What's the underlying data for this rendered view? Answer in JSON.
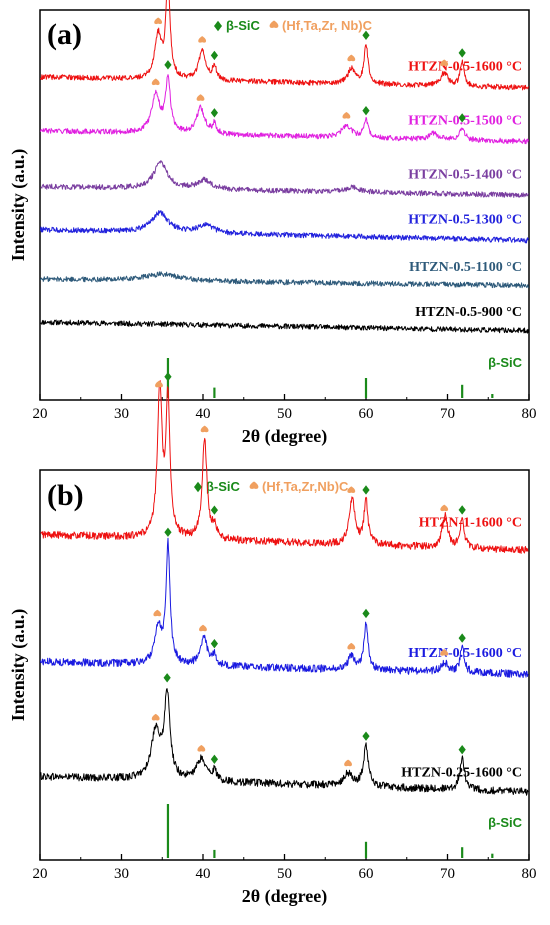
{
  "colors": {
    "sic": "#1a8a1a",
    "carbide": "#f0a060",
    "axis": "#000000"
  },
  "chart_data": [
    {
      "type": "line",
      "panel": "(a)",
      "xlabel": "2θ (degree)",
      "ylabel": "Intensity (a.u.)",
      "xlim": [
        20,
        80
      ],
      "xticks": [
        "20",
        "30",
        "40",
        "50",
        "60",
        "70",
        "80"
      ],
      "legend": {
        "sic": "β-SiC",
        "carbide": "(Hf,Ta,Zr, Nb)C"
      },
      "reference": {
        "name": "β-SiC",
        "color": "#1a8a1a",
        "peaks": [
          {
            "x": 35.7,
            "rel": 1.0
          },
          {
            "x": 41.4,
            "rel": 0.26
          },
          {
            "x": 60.0,
            "rel": 0.5
          },
          {
            "x": 71.8,
            "rel": 0.33
          },
          {
            "x": 75.5,
            "rel": 0.1
          }
        ]
      },
      "series": [
        {
          "name": "HTZN-0.5-900 °C",
          "color": "#000000",
          "baseline_start": 1.3,
          "baseline_end": 1.1,
          "peaks": []
        },
        {
          "name": "HTZN-0.5-1100 °C",
          "color": "#2e5a7a",
          "baseline_start": 2.3,
          "baseline_end": 2.15,
          "peaks": [
            {
              "x": 35,
              "h": 0.15,
              "w": 2.5
            }
          ]
        },
        {
          "name": "HTZN-0.5-1300 °C",
          "color": "#2222dd",
          "baseline_start": 3.45,
          "baseline_end": 3.2,
          "peaks": [
            {
              "x": 34.7,
              "h": 0.45,
              "w": 1.2
            },
            {
              "x": 40.3,
              "h": 0.18,
              "w": 1.2
            }
          ]
        },
        {
          "name": "HTZN-0.5-1400 °C",
          "color": "#7a3ea0",
          "baseline_start": 4.45,
          "baseline_end": 4.25,
          "peaks": [
            {
              "x": 34.8,
              "h": 0.6,
              "w": 1.0
            },
            {
              "x": 40.2,
              "h": 0.22,
              "w": 1.0
            },
            {
              "x": 58.3,
              "h": 0.12,
              "w": 1.0
            }
          ]
        },
        {
          "name": "HTZN-0.5-1500 °C",
          "color": "#e020e0",
          "baseline_start": 5.75,
          "baseline_end": 5.5,
          "peaks": [
            {
              "x": 34.2,
              "h": 0.9,
              "w": 0.6
            },
            {
              "x": 35.7,
              "h": 1.25,
              "w": 0.35
            },
            {
              "x": 39.7,
              "h": 0.6,
              "w": 0.6
            },
            {
              "x": 41.4,
              "h": 0.22,
              "w": 0.3
            },
            {
              "x": 57.6,
              "h": 0.28,
              "w": 0.7
            },
            {
              "x": 60.0,
              "h": 0.4,
              "w": 0.35
            },
            {
              "x": 68.3,
              "h": 0.15,
              "w": 0.6
            },
            {
              "x": 71.8,
              "h": 0.3,
              "w": 0.35
            }
          ]
        },
        {
          "name": "HTZN-0.5-1600 °C",
          "color": "#ee1111",
          "baseline_start": 7.0,
          "baseline_end": 6.75,
          "peaks": [
            {
              "x": 34.5,
              "h": 1.0,
              "w": 0.5
            },
            {
              "x": 35.7,
              "h": 2.3,
              "w": 0.3
            },
            {
              "x": 39.9,
              "h": 0.7,
              "w": 0.5
            },
            {
              "x": 41.4,
              "h": 0.3,
              "w": 0.3
            },
            {
              "x": 58.2,
              "h": 0.35,
              "w": 0.5
            },
            {
              "x": 60.0,
              "h": 0.9,
              "w": 0.3
            },
            {
              "x": 69.6,
              "h": 0.3,
              "w": 0.5
            },
            {
              "x": 71.8,
              "h": 0.55,
              "w": 0.3
            }
          ]
        }
      ],
      "markers": [
        {
          "series": 5,
          "x": 34.5,
          "kind": "carbide"
        },
        {
          "series": 5,
          "x": 35.7,
          "kind": "sic"
        },
        {
          "series": 5,
          "x": 39.9,
          "kind": "carbide"
        },
        {
          "series": 5,
          "x": 41.4,
          "kind": "sic"
        },
        {
          "series": 5,
          "x": 58.2,
          "kind": "carbide"
        },
        {
          "series": 5,
          "x": 60.0,
          "kind": "sic"
        },
        {
          "series": 5,
          "x": 69.6,
          "kind": "carbide"
        },
        {
          "series": 5,
          "x": 71.8,
          "kind": "sic"
        },
        {
          "series": 4,
          "x": 34.2,
          "kind": "carbide"
        },
        {
          "series": 4,
          "x": 35.7,
          "kind": "sic"
        },
        {
          "series": 4,
          "x": 39.7,
          "kind": "carbide"
        },
        {
          "series": 4,
          "x": 41.4,
          "kind": "sic"
        },
        {
          "series": 4,
          "x": 57.6,
          "kind": "carbide"
        },
        {
          "series": 4,
          "x": 60.0,
          "kind": "sic"
        },
        {
          "series": 4,
          "x": 71.8,
          "kind": "sic"
        }
      ]
    },
    {
      "type": "line",
      "panel": "(b)",
      "xlabel": "2θ (degree)",
      "ylabel": "Intensity (a.u.)",
      "xlim": [
        20,
        80
      ],
      "xticks": [
        "20",
        "30",
        "40",
        "50",
        "60",
        "70",
        "80"
      ],
      "legend": {
        "sic": "β-SiC",
        "carbide": "(Hf,Ta,Zr,Nb)C"
      },
      "reference": {
        "name": "β-SiC",
        "color": "#1a8a1a",
        "peaks": [
          {
            "x": 35.7,
            "rel": 1.0
          },
          {
            "x": 41.4,
            "rel": 0.15
          },
          {
            "x": 60.0,
            "rel": 0.3
          },
          {
            "x": 71.8,
            "rel": 0.2
          },
          {
            "x": 75.5,
            "rel": 0.08
          }
        ]
      },
      "series": [
        {
          "name": "HTZN-0.25-1600 °C",
          "color": "#000000",
          "baseline_start": 1.3,
          "baseline_end": 1.05,
          "peaks": [
            {
              "x": 34.2,
              "h": 0.75,
              "w": 0.7
            },
            {
              "x": 35.6,
              "h": 1.35,
              "w": 0.4
            },
            {
              "x": 39.8,
              "h": 0.35,
              "w": 0.7
            },
            {
              "x": 41.4,
              "h": 0.15,
              "w": 0.3
            },
            {
              "x": 57.8,
              "h": 0.2,
              "w": 0.7
            },
            {
              "x": 60.0,
              "h": 0.65,
              "w": 0.35
            },
            {
              "x": 71.8,
              "h": 0.5,
              "w": 0.35
            }
          ]
        },
        {
          "name": "HTZN-0.5-1600 °C",
          "color": "#1a1ae0",
          "baseline_start": 3.15,
          "baseline_end": 2.95,
          "peaks": [
            {
              "x": 34.5,
              "h": 0.6,
              "w": 0.5
            },
            {
              "x": 35.7,
              "h": 1.9,
              "w": 0.3
            },
            {
              "x": 40.1,
              "h": 0.45,
              "w": 0.5
            },
            {
              "x": 41.4,
              "h": 0.15,
              "w": 0.3
            },
            {
              "x": 58.2,
              "h": 0.2,
              "w": 0.5
            },
            {
              "x": 60.0,
              "h": 0.75,
              "w": 0.3
            },
            {
              "x": 69.6,
              "h": 0.15,
              "w": 0.5
            },
            {
              "x": 71.8,
              "h": 0.4,
              "w": 0.3
            }
          ]
        },
        {
          "name": "HTZN-1-1600 °C",
          "color": "#ee1111",
          "baseline_start": 5.2,
          "baseline_end": 4.95,
          "peaks": [
            {
              "x": 34.7,
              "h": 2.35,
              "w": 0.35
            },
            {
              "x": 35.7,
              "h": 2.2,
              "w": 0.3
            },
            {
              "x": 40.2,
              "h": 1.6,
              "w": 0.35
            },
            {
              "x": 41.4,
              "h": 0.2,
              "w": 0.3
            },
            {
              "x": 58.3,
              "h": 0.75,
              "w": 0.4
            },
            {
              "x": 60.0,
              "h": 0.7,
              "w": 0.3
            },
            {
              "x": 69.7,
              "h": 0.5,
              "w": 0.4
            },
            {
              "x": 71.8,
              "h": 0.45,
              "w": 0.3
            }
          ]
        }
      ],
      "markers": [
        {
          "series": 2,
          "x": 34.6,
          "kind": "carbide"
        },
        {
          "series": 2,
          "x": 35.7,
          "kind": "sic"
        },
        {
          "series": 2,
          "x": 40.2,
          "kind": "carbide"
        },
        {
          "series": 2,
          "x": 41.4,
          "kind": "sic"
        },
        {
          "series": 2,
          "x": 58.2,
          "kind": "carbide"
        },
        {
          "series": 2,
          "x": 60.0,
          "kind": "sic"
        },
        {
          "series": 2,
          "x": 69.6,
          "kind": "carbide"
        },
        {
          "series": 2,
          "x": 71.8,
          "kind": "sic"
        },
        {
          "series": 1,
          "x": 34.4,
          "kind": "carbide"
        },
        {
          "series": 1,
          "x": 35.7,
          "kind": "sic"
        },
        {
          "series": 1,
          "x": 40.0,
          "kind": "carbide"
        },
        {
          "series": 1,
          "x": 41.4,
          "kind": "sic"
        },
        {
          "series": 1,
          "x": 58.2,
          "kind": "carbide"
        },
        {
          "series": 1,
          "x": 60.0,
          "kind": "sic"
        },
        {
          "series": 1,
          "x": 69.6,
          "kind": "carbide"
        },
        {
          "series": 1,
          "x": 71.8,
          "kind": "sic"
        },
        {
          "series": 0,
          "x": 34.2,
          "kind": "carbide"
        },
        {
          "series": 0,
          "x": 35.6,
          "kind": "sic"
        },
        {
          "series": 0,
          "x": 39.8,
          "kind": "carbide"
        },
        {
          "series": 0,
          "x": 41.4,
          "kind": "sic"
        },
        {
          "series": 0,
          "x": 57.8,
          "kind": "carbide"
        },
        {
          "series": 0,
          "x": 60.0,
          "kind": "sic"
        },
        {
          "series": 0,
          "x": 71.8,
          "kind": "sic"
        }
      ]
    }
  ]
}
